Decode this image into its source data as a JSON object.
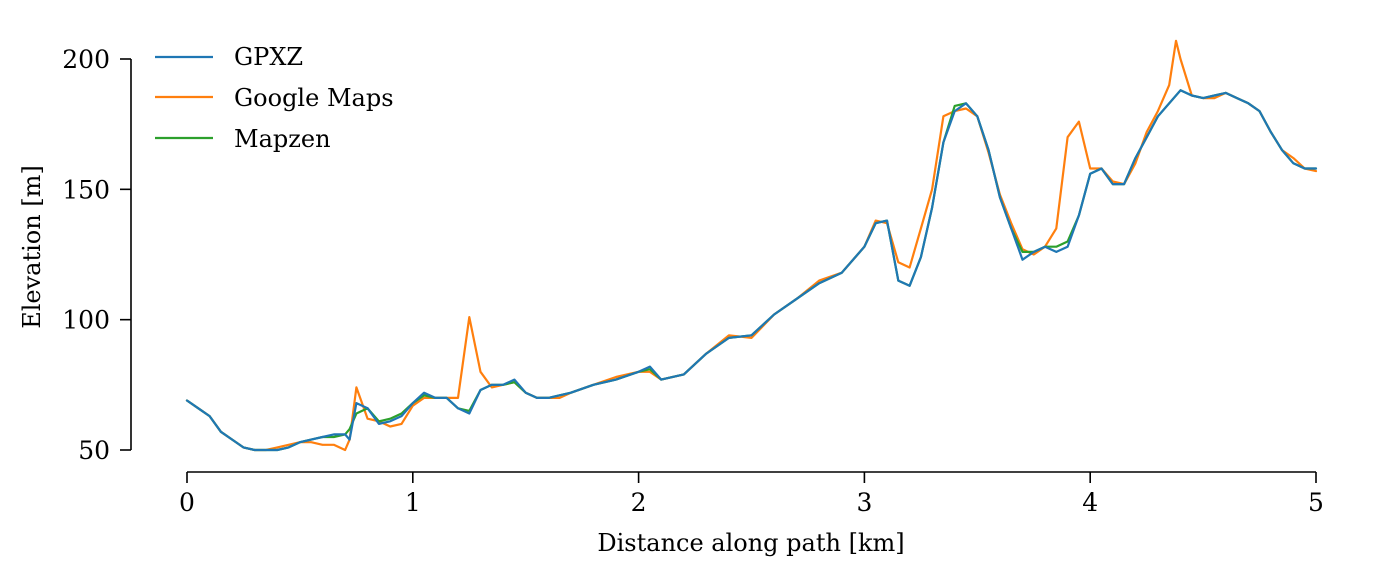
{
  "chart_data": {
    "type": "line",
    "xlabel": "Distance along path [km]",
    "ylabel": "Elevation [m]",
    "xlim": [
      0,
      5
    ],
    "ylim": [
      44,
      208
    ],
    "xticks": [
      0,
      1,
      2,
      3,
      4,
      5
    ],
    "yticks": [
      50,
      100,
      150,
      200
    ],
    "legend_position": "top-left",
    "grid": false,
    "series": [
      {
        "name": "GPXZ",
        "color": "#1f77b4",
        "x": [
          0,
          0.05,
          0.1,
          0.15,
          0.2,
          0.25,
          0.3,
          0.35,
          0.4,
          0.45,
          0.5,
          0.55,
          0.6,
          0.65,
          0.7,
          0.72,
          0.75,
          0.8,
          0.85,
          0.9,
          0.95,
          1.0,
          1.05,
          1.1,
          1.15,
          1.2,
          1.25,
          1.3,
          1.35,
          1.4,
          1.45,
          1.5,
          1.55,
          1.6,
          1.65,
          1.7,
          1.8,
          1.9,
          2.0,
          2.05,
          2.1,
          2.2,
          2.3,
          2.4,
          2.5,
          2.6,
          2.7,
          2.8,
          2.9,
          3.0,
          3.05,
          3.1,
          3.15,
          3.2,
          3.25,
          3.3,
          3.35,
          3.4,
          3.45,
          3.5,
          3.55,
          3.6,
          3.65,
          3.7,
          3.75,
          3.8,
          3.85,
          3.9,
          3.95,
          4.0,
          4.05,
          4.1,
          4.15,
          4.2,
          4.25,
          4.3,
          4.35,
          4.4,
          4.45,
          4.5,
          4.55,
          4.6,
          4.65,
          4.7,
          4.75,
          4.8,
          4.85,
          4.9,
          4.95,
          5.0
        ],
        "y": [
          69,
          66,
          63,
          57,
          54,
          51,
          50,
          50,
          50,
          51,
          53,
          54,
          55,
          56,
          56,
          54,
          68,
          66,
          60,
          61,
          63,
          68,
          72,
          70,
          70,
          66,
          64,
          73,
          75,
          75,
          77,
          72,
          70,
          70,
          71,
          72,
          75,
          77,
          80,
          82,
          77,
          79,
          87,
          93,
          94,
          102,
          108,
          114,
          118,
          128,
          137,
          138,
          115,
          113,
          124,
          143,
          168,
          180,
          183,
          178,
          165,
          147,
          135,
          123,
          126,
          128,
          126,
          128,
          140,
          156,
          158,
          152,
          152,
          162,
          170,
          178,
          183,
          188,
          186,
          185,
          186,
          187,
          185,
          183,
          180,
          172,
          165,
          160,
          158,
          158
        ]
      },
      {
        "name": "Google Maps",
        "color": "#ff7f0e",
        "x": [
          0,
          0.05,
          0.1,
          0.15,
          0.2,
          0.25,
          0.3,
          0.35,
          0.4,
          0.45,
          0.5,
          0.55,
          0.6,
          0.65,
          0.7,
          0.72,
          0.75,
          0.8,
          0.85,
          0.9,
          0.95,
          1.0,
          1.05,
          1.1,
          1.15,
          1.2,
          1.25,
          1.3,
          1.35,
          1.4,
          1.45,
          1.5,
          1.55,
          1.6,
          1.65,
          1.7,
          1.8,
          1.9,
          2.0,
          2.05,
          2.1,
          2.2,
          2.3,
          2.4,
          2.5,
          2.6,
          2.7,
          2.8,
          2.9,
          3.0,
          3.05,
          3.1,
          3.15,
          3.2,
          3.25,
          3.3,
          3.35,
          3.4,
          3.45,
          3.5,
          3.55,
          3.6,
          3.65,
          3.7,
          3.75,
          3.8,
          3.85,
          3.9,
          3.95,
          4.0,
          4.05,
          4.1,
          4.15,
          4.2,
          4.25,
          4.3,
          4.35,
          4.38,
          4.4,
          4.45,
          4.5,
          4.55,
          4.6,
          4.65,
          4.7,
          4.75,
          4.8,
          4.85,
          4.9,
          4.95,
          5.0
        ],
        "y": [
          69,
          66,
          63,
          57,
          54,
          51,
          50,
          50,
          51,
          52,
          53,
          53,
          52,
          52,
          50,
          54,
          74,
          62,
          61,
          59,
          60,
          67,
          70,
          70,
          70,
          70,
          101,
          80,
          74,
          75,
          76,
          72,
          70,
          70,
          70,
          72,
          75,
          78,
          80,
          80,
          77,
          79,
          87,
          94,
          93,
          102,
          108,
          115,
          118,
          128,
          138,
          137,
          122,
          120,
          135,
          150,
          178,
          180,
          181,
          178,
          164,
          148,
          137,
          127,
          125,
          128,
          135,
          170,
          176,
          158,
          158,
          153,
          152,
          160,
          172,
          180,
          190,
          207,
          200,
          186,
          185,
          185,
          187,
          185,
          183,
          180,
          172,
          165,
          162,
          158,
          157
        ]
      },
      {
        "name": "Mapzen",
        "color": "#2ca02c",
        "x": [
          0,
          0.05,
          0.1,
          0.15,
          0.2,
          0.25,
          0.3,
          0.35,
          0.4,
          0.45,
          0.5,
          0.55,
          0.6,
          0.65,
          0.7,
          0.72,
          0.75,
          0.8,
          0.85,
          0.9,
          0.95,
          1.0,
          1.05,
          1.1,
          1.15,
          1.2,
          1.25,
          1.3,
          1.35,
          1.4,
          1.45,
          1.5,
          1.55,
          1.6,
          1.65,
          1.7,
          1.8,
          1.9,
          2.0,
          2.05,
          2.1,
          2.2,
          2.3,
          2.4,
          2.5,
          2.6,
          2.7,
          2.8,
          2.9,
          3.0,
          3.05,
          3.1,
          3.15,
          3.2,
          3.25,
          3.3,
          3.35,
          3.4,
          3.45,
          3.5,
          3.55,
          3.6,
          3.65,
          3.7,
          3.75,
          3.8,
          3.85,
          3.9,
          3.95,
          4.0,
          4.05,
          4.1,
          4.15,
          4.2,
          4.25,
          4.3,
          4.35,
          4.4,
          4.45,
          4.5,
          4.55,
          4.6,
          4.65,
          4.7,
          4.75,
          4.8,
          4.85,
          4.9,
          4.95,
          5.0
        ],
        "y": [
          69,
          66,
          63,
          57,
          54,
          51,
          50,
          50,
          50,
          51,
          53,
          54,
          55,
          55,
          56,
          58,
          64,
          66,
          61,
          62,
          64,
          68,
          71,
          70,
          70,
          66,
          65,
          73,
          75,
          75,
          76,
          72,
          70,
          70,
          71,
          72,
          75,
          77,
          80,
          81,
          77,
          79,
          87,
          93,
          94,
          102,
          108,
          114,
          118,
          128,
          137,
          138,
          115,
          113,
          124,
          143,
          168,
          182,
          183,
          178,
          165,
          147,
          135,
          126,
          126,
          128,
          128,
          130,
          140,
          156,
          158,
          152,
          152,
          162,
          170,
          178,
          183,
          188,
          186,
          185,
          186,
          187,
          185,
          183,
          180,
          172,
          165,
          160,
          158,
          158
        ]
      }
    ]
  }
}
